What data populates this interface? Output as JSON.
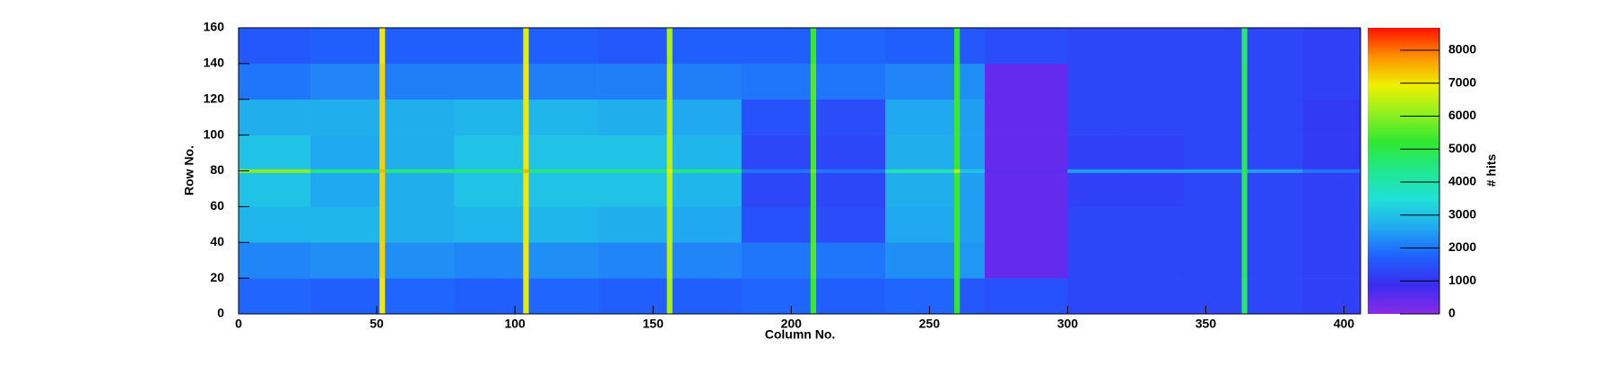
{
  "chart_data": {
    "type": "heatmap",
    "x_label": "Column No.",
    "y_label": "Row No.",
    "colorbar_label": "# hits",
    "xbins": [
      0,
      26,
      51,
      53,
      78,
      103,
      105,
      130,
      155,
      157,
      182,
      207,
      209,
      234,
      259,
      261,
      270,
      300,
      320,
      342,
      363,
      365,
      385,
      406
    ],
    "ybins": [
      0,
      20,
      40,
      60,
      79,
      81,
      100,
      120,
      140,
      160
    ],
    "z": [
      [
        1800,
        1700,
        7000,
        1800,
        1700,
        6800,
        1800,
        1700,
        6300,
        1700,
        1800,
        5300,
        1700,
        1800,
        5200,
        1600,
        1500,
        1300,
        1300,
        1300,
        4700,
        1300,
        1200
      ],
      [
        2200,
        2300,
        7200,
        2300,
        2200,
        7000,
        2300,
        2200,
        6500,
        2200,
        2000,
        5500,
        2000,
        2300,
        5300,
        2400,
        400,
        1300,
        1300,
        1300,
        4800,
        1300,
        1200
      ],
      [
        2800,
        2800,
        7200,
        2700,
        2800,
        7000,
        2800,
        2700,
        6500,
        2600,
        1500,
        5400,
        1400,
        2600,
        5300,
        2500,
        400,
        1300,
        1300,
        1300,
        4800,
        1300,
        1200
      ],
      [
        3000,
        2600,
        7200,
        2700,
        3000,
        7000,
        3000,
        3000,
        6500,
        2800,
        1300,
        5400,
        1300,
        2700,
        5300,
        2500,
        400,
        1200,
        1200,
        1300,
        4800,
        1300,
        1200
      ],
      [
        6000,
        4500,
        7500,
        4500,
        4500,
        7500,
        4500,
        4500,
        7000,
        4500,
        2000,
        5800,
        2000,
        4000,
        6500,
        3000,
        500,
        2500,
        2500,
        2500,
        5000,
        2500,
        2000
      ],
      [
        3000,
        2600,
        7200,
        2700,
        3000,
        7000,
        3000,
        3000,
        6500,
        2800,
        1300,
        5400,
        1300,
        2700,
        5300,
        2500,
        400,
        1200,
        1200,
        1300,
        4800,
        1300,
        1100
      ],
      [
        2700,
        2700,
        7200,
        2700,
        2800,
        7000,
        2800,
        2700,
        6500,
        2600,
        1500,
        5400,
        1400,
        2600,
        5300,
        2500,
        400,
        1300,
        1300,
        1300,
        4800,
        1300,
        1100
      ],
      [
        2000,
        2200,
        7200,
        2100,
        2100,
        7000,
        2100,
        2100,
        6500,
        2100,
        2000,
        5500,
        2000,
        2200,
        5300,
        2300,
        400,
        1300,
        1300,
        1300,
        4800,
        1300,
        1200
      ],
      [
        1600,
        1700,
        7000,
        1700,
        1700,
        6800,
        1700,
        1600,
        6300,
        1700,
        1700,
        5300,
        1800,
        1700,
        5200,
        1600,
        1400,
        1300,
        1300,
        1300,
        4700,
        1300,
        1200
      ]
    ],
    "xlim": [
      0,
      406
    ],
    "ylim": [
      0,
      160
    ],
    "xticks": [
      0,
      50,
      100,
      150,
      200,
      250,
      300,
      350,
      400
    ],
    "yticks": [
      0,
      20,
      40,
      60,
      80,
      100,
      120,
      140,
      160
    ],
    "zlim": [
      0,
      8680
    ],
    "zticks": [
      0,
      1000,
      2000,
      3000,
      4000,
      5000,
      6000,
      7000,
      8000
    ],
    "colorscale": [
      "#8a2be8",
      "#3a2cf0",
      "#2060ff",
      "#20a8f0",
      "#20e0d8",
      "#20e890",
      "#30e830",
      "#90f020",
      "#f0f000",
      "#ff9000",
      "#ff1000"
    ]
  }
}
